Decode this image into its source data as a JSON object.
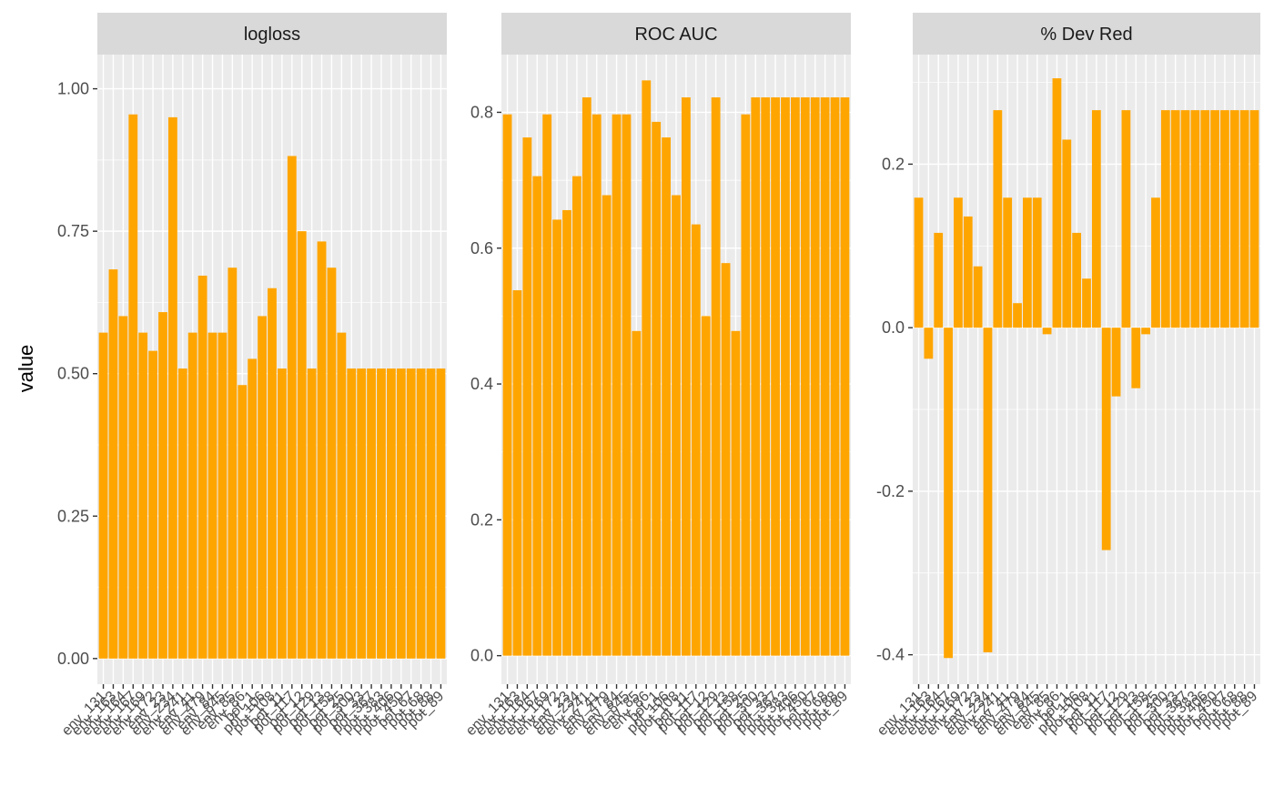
{
  "chart_data": {
    "type": "bar",
    "ylabel": "value",
    "xlabel": "",
    "colors": {
      "bar": "#FFA500",
      "panel": "#EBEBEB",
      "strip": "#D9D9D9",
      "grid_major": "#FFFFFF",
      "text": "#4D4D4D"
    },
    "categories": [
      "env_131",
      "env_163",
      "env_164",
      "env_167",
      "env_169",
      "env_172",
      "env_23",
      "env_234",
      "env_241",
      "env_41",
      "env_479",
      "env_84",
      "env_845",
      "env_85",
      "env_86",
      "pot_1",
      "pot_106",
      "pot_108",
      "pot_11",
      "pot_117",
      "pot_12",
      "pot_129",
      "pot_13",
      "pot_158",
      "pot_25",
      "pot_300",
      "pot_33",
      "pot_367",
      "pot_383",
      "pot_406",
      "pot_450",
      "pot_67",
      "pot_68",
      "pot_88",
      "pot_89"
    ],
    "tick_labels": [
      "env_131",
      "env_163",
      "env_164",
      "env_167",
      "env_169",
      "env_172",
      "env_23",
      "env_234",
      "env_241",
      "env_41",
      "env_479",
      "env_84",
      "env_845",
      "env_85",
      "env_86",
      "pot_1",
      "pot_106",
      "pot_108",
      "pot_11",
      "pot_117",
      "pot_12",
      "pot_129",
      "pot_13",
      "pot_158",
      "pot_25",
      "pot_300",
      "pot_33",
      "pot_367",
      "pot_383",
      "pot_406",
      "pot_450",
      "pot_67",
      "pot_68",
      "pot_88",
      "pot_89"
    ],
    "panels": [
      {
        "title": "logloss",
        "ylim": [
          -0.045,
          1.06
        ],
        "yticks": [
          0.0,
          0.25,
          0.5,
          0.75,
          1.0
        ],
        "ytick_labels": [
          "0.00",
          "0.25",
          "0.50",
          "0.75",
          "1.00"
        ],
        "values": [
          0.572,
          0.683,
          0.601,
          0.955,
          0.572,
          0.54,
          0.608,
          0.95,
          0.509,
          0.572,
          0.672,
          0.572,
          0.572,
          0.686,
          0.48,
          0.526,
          0.601,
          0.65,
          0.509,
          0.882,
          0.75,
          0.509,
          0.732,
          0.686,
          0.572,
          0.509,
          0.509,
          0.509,
          0.509,
          0.509,
          0.509,
          0.509,
          0.509,
          0.509,
          0.509
        ]
      },
      {
        "title": "ROC AUC",
        "ylim": [
          -0.042,
          0.885
        ],
        "yticks": [
          0.0,
          0.2,
          0.4,
          0.6,
          0.8
        ],
        "ytick_labels": [
          "0.0",
          "0.2",
          "0.4",
          "0.6",
          "0.8"
        ],
        "values": [
          0.797,
          0.538,
          0.763,
          0.706,
          0.797,
          0.642,
          0.656,
          0.706,
          0.822,
          0.797,
          0.678,
          0.797,
          0.797,
          0.478,
          0.847,
          0.786,
          0.763,
          0.678,
          0.822,
          0.635,
          0.5,
          0.822,
          0.578,
          0.478,
          0.797,
          0.822,
          0.822,
          0.822,
          0.822,
          0.822,
          0.822,
          0.822,
          0.822,
          0.822,
          0.822
        ]
      },
      {
        "title": "% Dev Red",
        "ylim": [
          -0.436,
          0.334
        ],
        "yticks": [
          -0.4,
          -0.2,
          0.0,
          0.2
        ],
        "ytick_labels": [
          "-0.4",
          "-0.2",
          "0.0",
          "0.2"
        ],
        "values": [
          0.159,
          -0.038,
          0.116,
          -0.404,
          0.159,
          0.136,
          0.075,
          -0.397,
          0.266,
          0.159,
          0.03,
          0.159,
          0.159,
          -0.008,
          0.305,
          0.23,
          0.116,
          0.06,
          0.266,
          -0.272,
          -0.084,
          0.266,
          -0.074,
          -0.008,
          0.159,
          0.266,
          0.266,
          0.266,
          0.266,
          0.266,
          0.266,
          0.266,
          0.266,
          0.266,
          0.266
        ]
      }
    ]
  }
}
